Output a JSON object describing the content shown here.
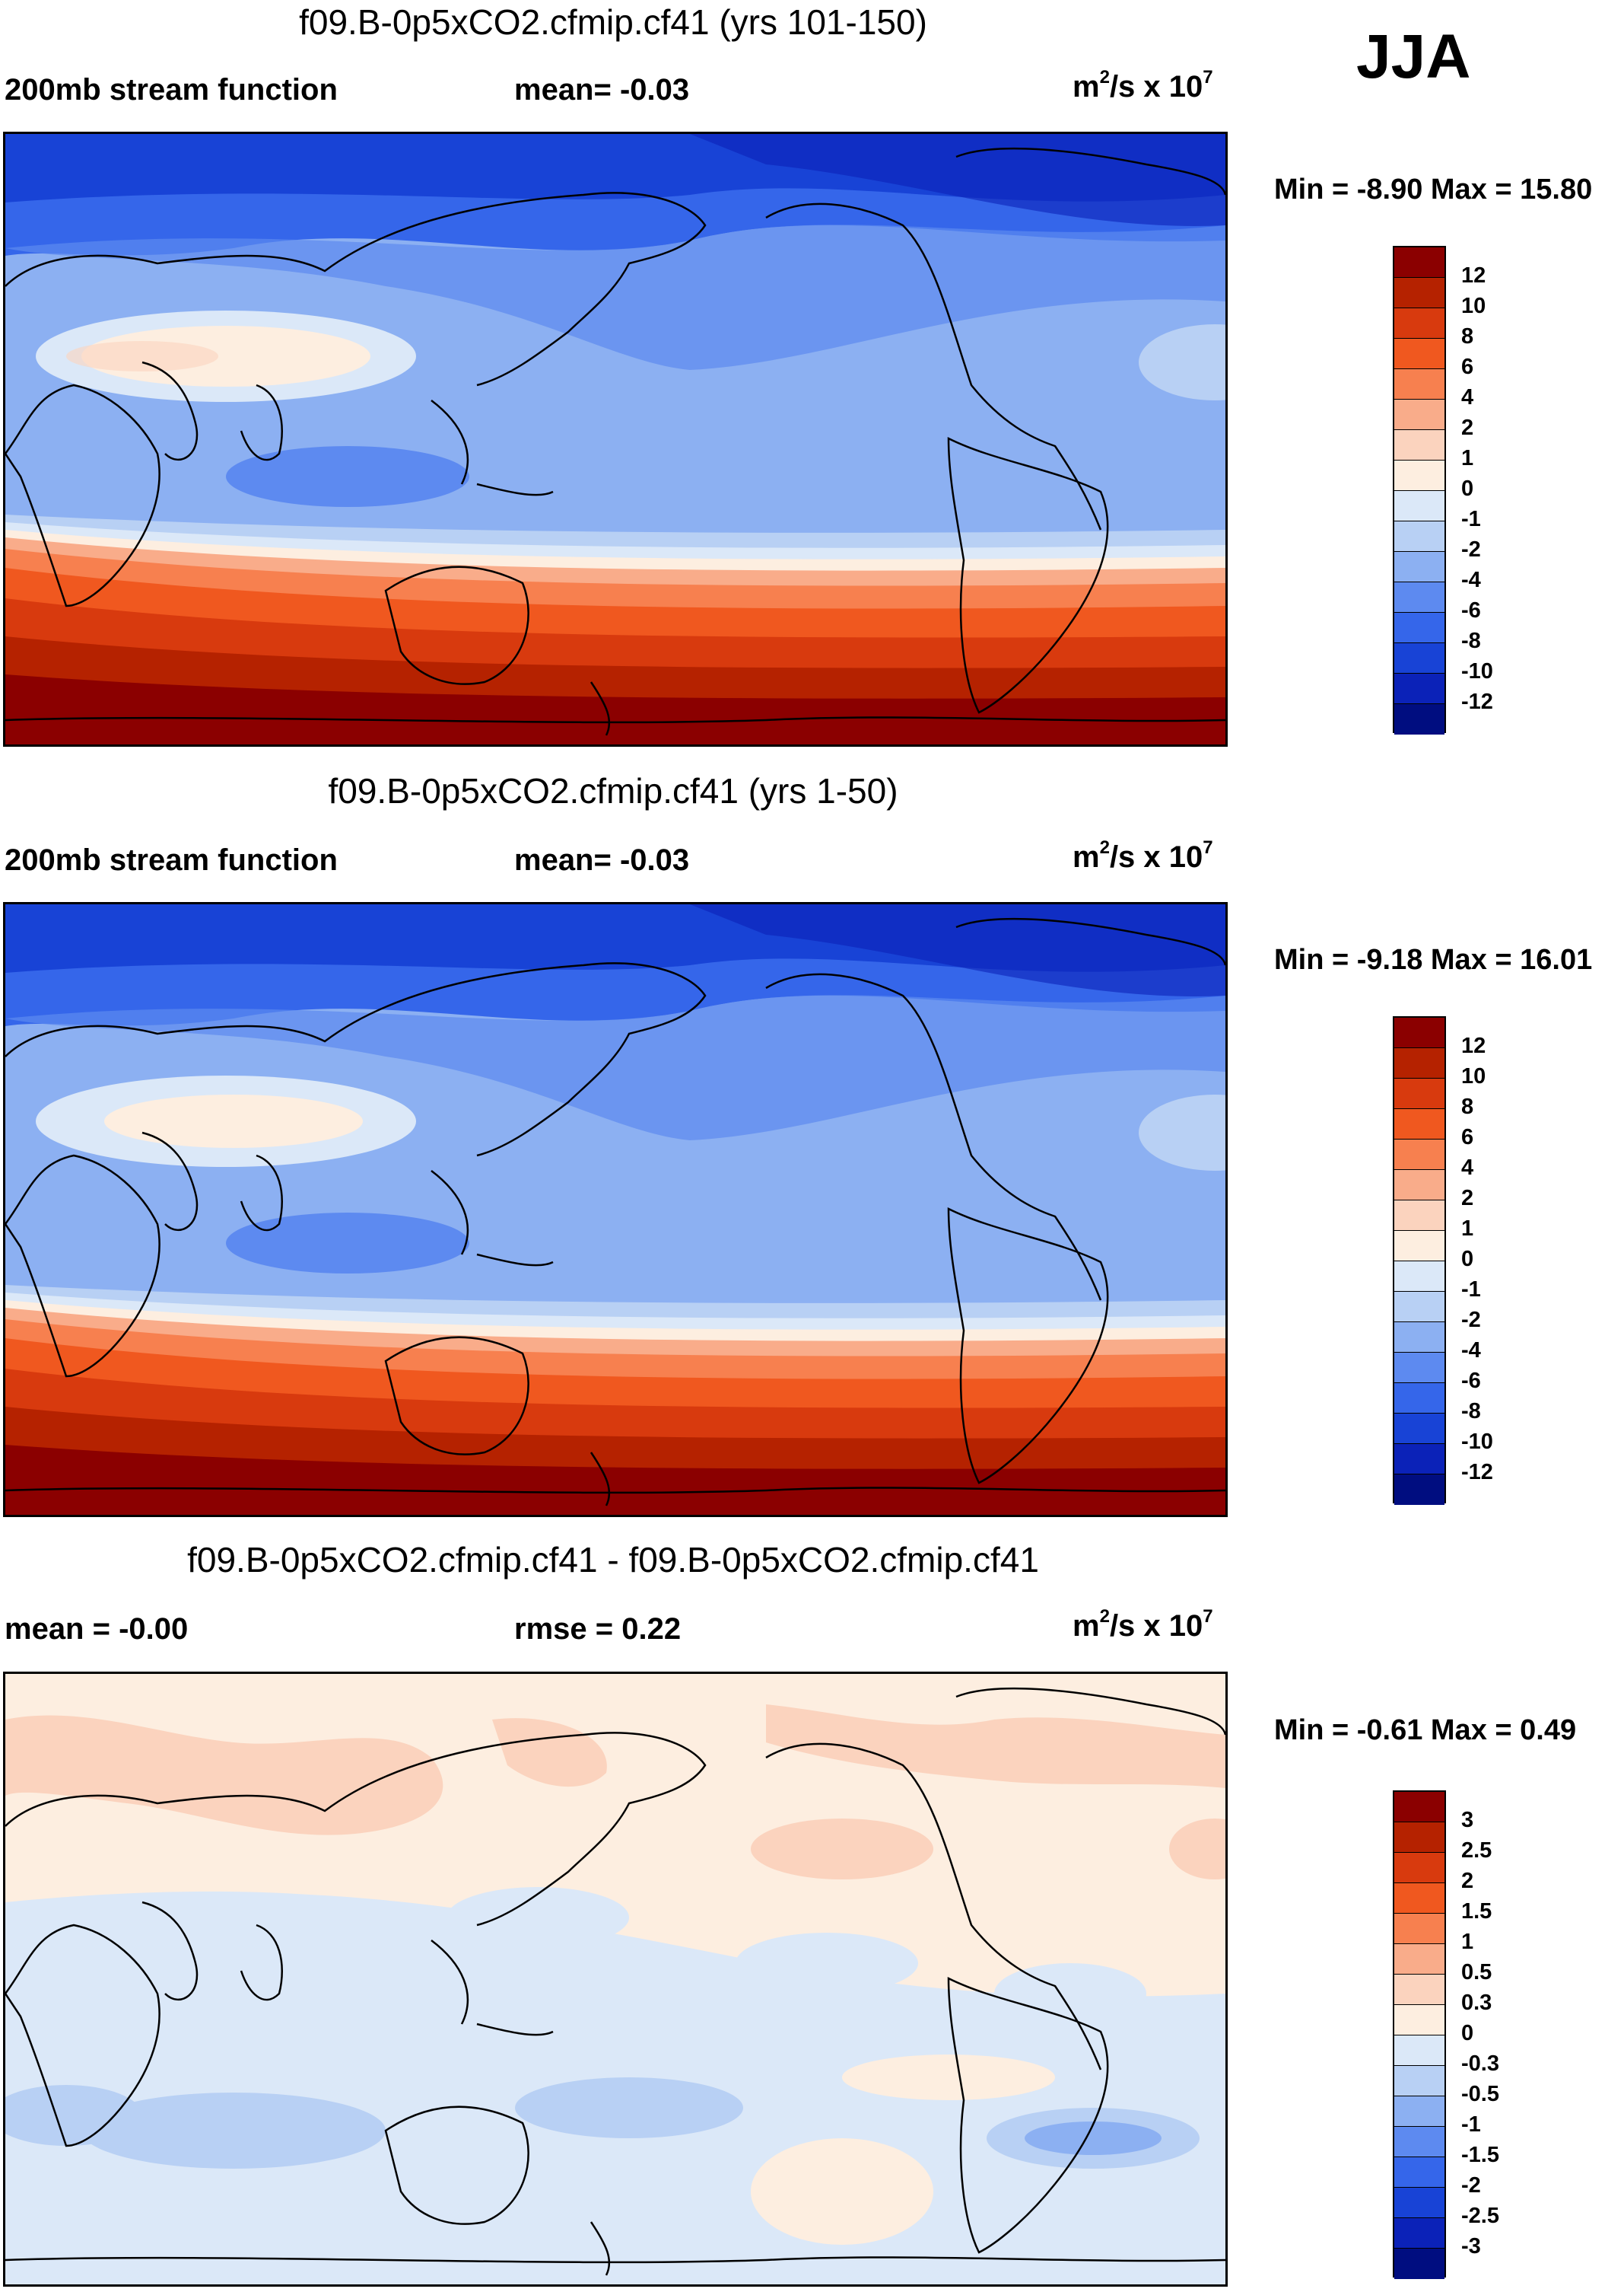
{
  "season": "JJA",
  "units": {
    "base": "m",
    "exp": "2",
    "rest": "/s x 10",
    "exp2": "7"
  },
  "panels": [
    {
      "title": "f09.B-0p5xCO2.cfmip.cf41 (yrs 101-150)",
      "left_label": "200mb stream function",
      "center_label": "mean=  -0.03",
      "minmax": "Min =  -8.90 Max =  15.80",
      "legend": [
        "12",
        "10",
        "8",
        "6",
        "4",
        "2",
        "1",
        "0",
        "-1",
        "-2",
        "-4",
        "-6",
        "-8",
        "-10",
        "-12"
      ],
      "colors": [
        "#8b0000",
        "#b52200",
        "#d83a0e",
        "#f0581f",
        "#f7804f",
        "#f9ac8a",
        "#fbd3be",
        "#fdeee0",
        "#dbe8f8",
        "#b8d0f4",
        "#8cb0f2",
        "#5d8af0",
        "#3566ea",
        "#1843d6",
        "#0b22b8",
        "#000d80"
      ]
    },
    {
      "title": "f09.B-0p5xCO2.cfmip.cf41 (yrs 1-50)",
      "left_label": "200mb stream function",
      "center_label": "mean=  -0.03",
      "minmax": "Min =  -9.18 Max =  16.01",
      "legend": [
        "12",
        "10",
        "8",
        "6",
        "4",
        "2",
        "1",
        "0",
        "-1",
        "-2",
        "-4",
        "-6",
        "-8",
        "-10",
        "-12"
      ],
      "colors": [
        "#8b0000",
        "#b52200",
        "#d83a0e",
        "#f0581f",
        "#f7804f",
        "#f9ac8a",
        "#fbd3be",
        "#fdeee0",
        "#dbe8f8",
        "#b8d0f4",
        "#8cb0f2",
        "#5d8af0",
        "#3566ea",
        "#1843d6",
        "#0b22b8",
        "#000d80"
      ]
    },
    {
      "title": "f09.B-0p5xCO2.cfmip.cf41 - f09.B-0p5xCO2.cfmip.cf41",
      "left_label": "mean =  -0.00",
      "center_label": "rmse =   0.22",
      "minmax": "Min =  -0.61 Max =   0.49",
      "legend": [
        "3",
        "2.5",
        "2",
        "1.5",
        "1",
        "0.5",
        "0.3",
        "0",
        "-0.3",
        "-0.5",
        "-1",
        "-1.5",
        "-2",
        "-2.5",
        "-3"
      ],
      "colors": [
        "#8b0000",
        "#b52200",
        "#d83a0e",
        "#f0581f",
        "#f7804f",
        "#f9ac8a",
        "#fbd3be",
        "#fdeee0",
        "#dbe8f8",
        "#b8d0f4",
        "#8cb0f2",
        "#5d8af0",
        "#3566ea",
        "#1843d6",
        "#0b22b8",
        "#000d80"
      ]
    }
  ]
}
